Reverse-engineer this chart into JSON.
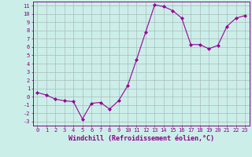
{
  "x": [
    0,
    1,
    2,
    3,
    4,
    5,
    6,
    7,
    8,
    9,
    10,
    11,
    12,
    13,
    14,
    15,
    16,
    17,
    18,
    19,
    20,
    21,
    22,
    23
  ],
  "y": [
    0.5,
    0.2,
    -0.3,
    -0.5,
    -0.6,
    -2.7,
    -0.8,
    -0.7,
    -1.5,
    -0.5,
    1.3,
    4.5,
    7.8,
    11.1,
    10.9,
    10.4,
    9.5,
    6.3,
    6.3,
    5.8,
    6.2,
    8.5,
    9.5,
    9.8
  ],
  "line_color": "#990099",
  "marker": "D",
  "marker_size": 2.0,
  "bg_color": "#cceee8",
  "grid_color": "#aabbbb",
  "xlabel": "Windchill (Refroidissement éolien,°C)",
  "xlim": [
    -0.5,
    23.5
  ],
  "ylim": [
    -3.5,
    11.5
  ],
  "yticks": [
    -3,
    -2,
    -1,
    0,
    1,
    2,
    3,
    4,
    5,
    6,
    7,
    8,
    9,
    10,
    11
  ],
  "xticks": [
    0,
    1,
    2,
    3,
    4,
    5,
    6,
    7,
    8,
    9,
    10,
    11,
    12,
    13,
    14,
    15,
    16,
    17,
    18,
    19,
    20,
    21,
    22,
    23
  ],
  "label_fontsize": 6.0,
  "tick_fontsize": 5.0,
  "axis_color": "#880088"
}
